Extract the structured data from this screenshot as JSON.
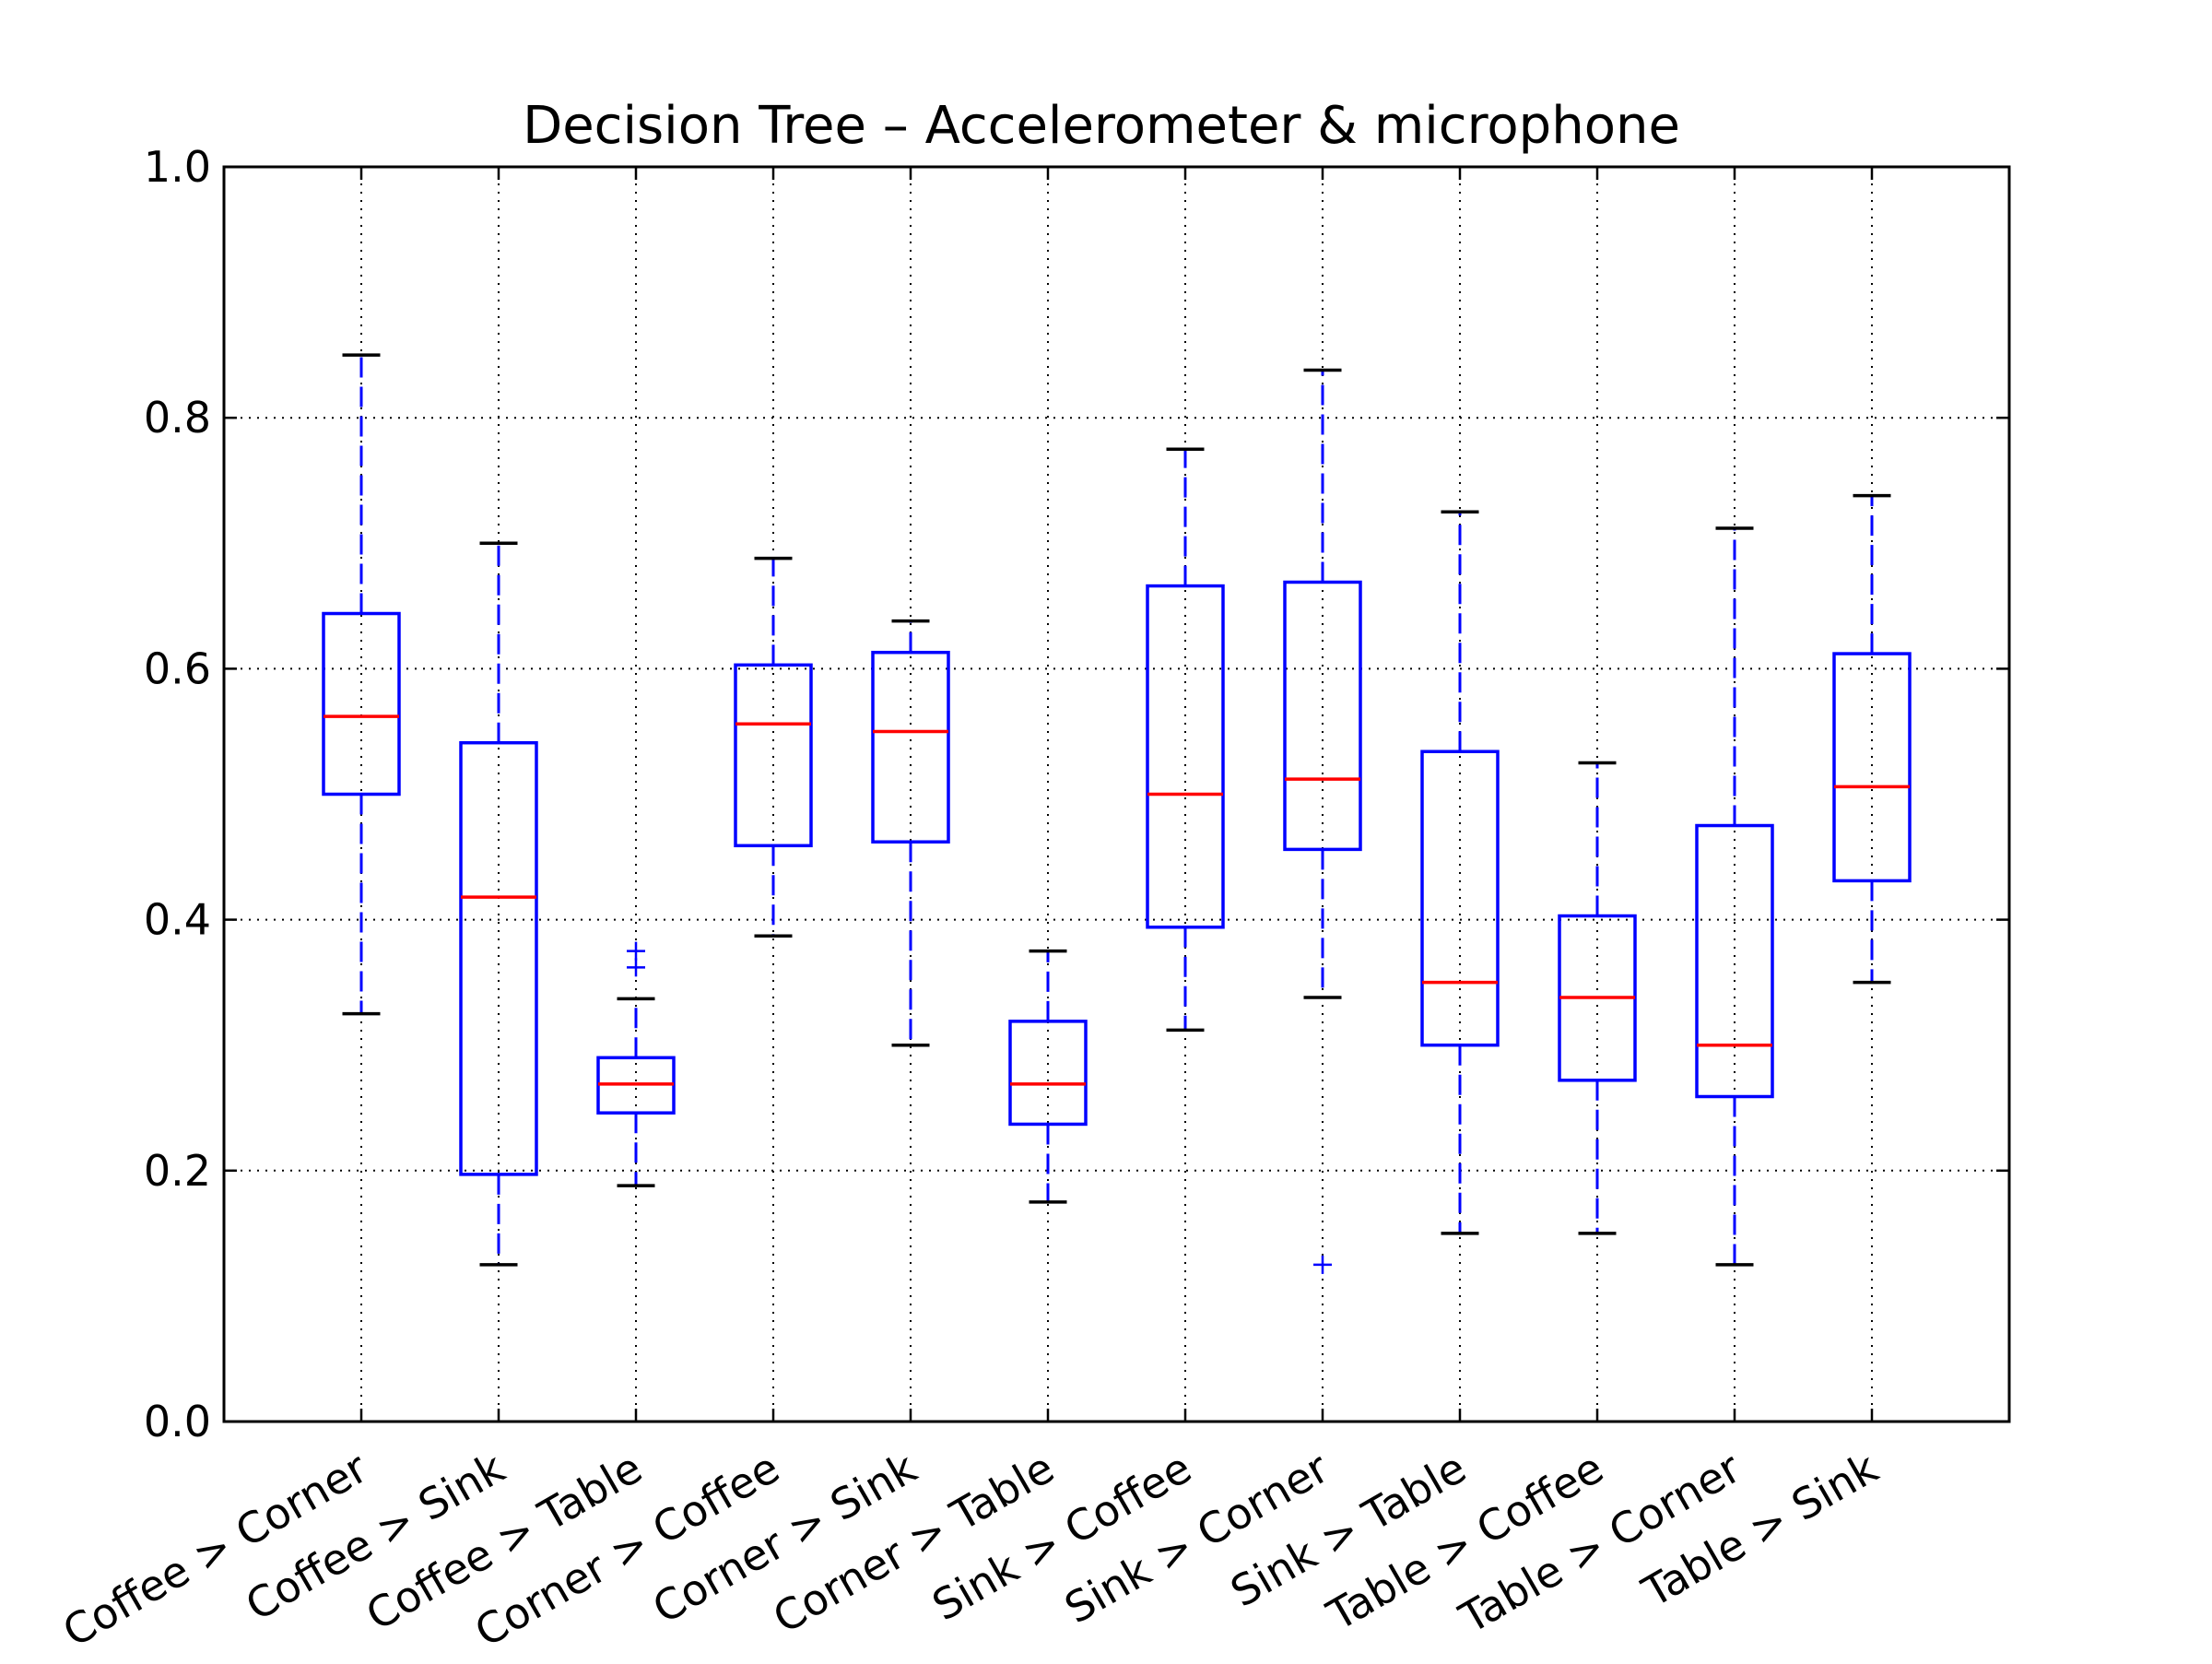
{
  "chart_data": {
    "type": "box",
    "title": "Decision Tree – Accelerometer & microphone",
    "xlabel": "",
    "ylabel": "",
    "ylim": [
      0.0,
      1.0
    ],
    "yticks": [
      "0.0",
      "0.2",
      "0.4",
      "0.6",
      "0.8",
      "1.0"
    ],
    "grid": true,
    "colors": {
      "box": "#0000ff",
      "median": "#ff0000",
      "cap": "#000000",
      "whisker": "#0000ff",
      "flier": "#0000ff",
      "grid": "#000000"
    },
    "categories": [
      "Coffee > Corner",
      "Coffee > Sink",
      "Coffee > Table",
      "Corner > Coffee",
      "Corner > Sink",
      "Corner > Table",
      "Sink > Coffee",
      "Sink > Corner",
      "Sink > Table",
      "Table > Coffee",
      "Table > Corner",
      "Table > Sink"
    ],
    "boxes": [
      {
        "whislo": 0.325,
        "q1": 0.5,
        "med": 0.562,
        "q3": 0.644,
        "whishi": 0.85,
        "fliers": []
      },
      {
        "whislo": 0.125,
        "q1": 0.197,
        "med": 0.418,
        "q3": 0.541,
        "whishi": 0.7,
        "fliers": []
      },
      {
        "whislo": 0.188,
        "q1": 0.246,
        "med": 0.269,
        "q3": 0.29,
        "whishi": 0.337,
        "fliers": [
          0.362,
          0.375
        ]
      },
      {
        "whislo": 0.387,
        "q1": 0.459,
        "med": 0.556,
        "q3": 0.603,
        "whishi": 0.688,
        "fliers": []
      },
      {
        "whislo": 0.3,
        "q1": 0.462,
        "med": 0.55,
        "q3": 0.613,
        "whishi": 0.638,
        "fliers": []
      },
      {
        "whislo": 0.175,
        "q1": 0.237,
        "med": 0.269,
        "q3": 0.319,
        "whishi": 0.375,
        "fliers": []
      },
      {
        "whislo": 0.312,
        "q1": 0.394,
        "med": 0.5,
        "q3": 0.666,
        "whishi": 0.775,
        "fliers": []
      },
      {
        "whislo": 0.338,
        "q1": 0.456,
        "med": 0.512,
        "q3": 0.669,
        "whishi": 0.838,
        "fliers": [
          0.125
        ]
      },
      {
        "whislo": 0.15,
        "q1": 0.3,
        "med": 0.35,
        "q3": 0.534,
        "whishi": 0.725,
        "fliers": []
      },
      {
        "whislo": 0.15,
        "q1": 0.272,
        "med": 0.338,
        "q3": 0.403,
        "whishi": 0.525,
        "fliers": []
      },
      {
        "whislo": 0.125,
        "q1": 0.259,
        "med": 0.3,
        "q3": 0.475,
        "whishi": 0.712,
        "fliers": []
      },
      {
        "whislo": 0.35,
        "q1": 0.431,
        "med": 0.506,
        "q3": 0.612,
        "whishi": 0.738,
        "fliers": []
      }
    ]
  }
}
